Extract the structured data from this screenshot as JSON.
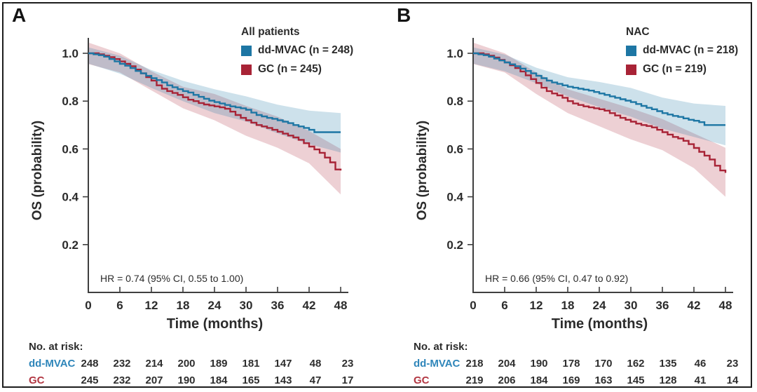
{
  "figure": {
    "background": "#ffffff",
    "border_color": "#1d1d1d",
    "axis_color": "#3f3f3f",
    "text_color": "#2b2b2b"
  },
  "axes": {
    "x_label": "Time (months)",
    "y_label": "OS (probability)",
    "x_ticks": [
      0,
      6,
      12,
      18,
      24,
      30,
      36,
      42,
      48
    ],
    "y_tick_labels": [
      "1.0",
      "0.8",
      "0.6",
      "0.4",
      "0.2"
    ],
    "xlim": [
      0,
      48
    ],
    "ylim": [
      0,
      1.05
    ]
  },
  "chart_data": [
    {
      "type": "line",
      "panel": "A",
      "title": "All patients",
      "xlabel": "Time (months)",
      "ylabel": "OS (probability)",
      "legend_position": "top-right",
      "hr_annotation": "HR = 0.74 (95% CI, 0.55 to 1.00)",
      "series": [
        {
          "name": "dd-MVAC",
          "label": "dd-MVAC (n = 248)",
          "n": 248,
          "color": "#1d76a4",
          "band_color": "rgba(29,118,164,0.22)",
          "steps": [
            [
              0,
              1
            ],
            [
              1,
              0.996
            ],
            [
              2,
              0.992
            ],
            [
              3,
              0.986
            ],
            [
              4,
              0.976
            ],
            [
              5,
              0.966
            ],
            [
              6,
              0.956
            ],
            [
              7,
              0.948
            ],
            [
              8,
              0.938
            ],
            [
              9,
              0.926
            ],
            [
              10,
              0.916
            ],
            [
              11,
              0.906
            ],
            [
              12,
              0.896
            ],
            [
              13,
              0.888
            ],
            [
              14,
              0.878
            ],
            [
              15,
              0.866
            ],
            [
              16,
              0.858
            ],
            [
              17,
              0.85
            ],
            [
              18,
              0.842
            ],
            [
              19,
              0.836
            ],
            [
              20,
              0.826
            ],
            [
              21,
              0.818
            ],
            [
              22,
              0.81
            ],
            [
              23,
              0.802
            ],
            [
              24,
              0.796
            ],
            [
              25,
              0.79
            ],
            [
              26,
              0.784
            ],
            [
              27,
              0.778
            ],
            [
              28,
              0.774
            ],
            [
              29,
              0.77
            ],
            [
              30,
              0.764
            ],
            [
              31,
              0.752
            ],
            [
              32,
              0.742
            ],
            [
              33,
              0.736
            ],
            [
              34,
              0.73
            ],
            [
              35,
              0.726
            ],
            [
              36,
              0.72
            ],
            [
              37,
              0.714
            ],
            [
              38,
              0.708
            ],
            [
              39,
              0.7
            ],
            [
              40,
              0.694
            ],
            [
              41,
              0.688
            ],
            [
              42,
              0.68
            ],
            [
              43,
              0.67
            ],
            [
              48,
              0.67
            ]
          ],
          "ci": [
            [
              0,
              0.957,
              1.025
            ],
            [
              6,
              0.915,
              0.99
            ],
            [
              12,
              0.855,
              0.93
            ],
            [
              18,
              0.8,
              0.885
            ],
            [
              24,
              0.75,
              0.85
            ],
            [
              30,
              0.715,
              0.82
            ],
            [
              36,
              0.665,
              0.785
            ],
            [
              42,
              0.62,
              0.76
            ],
            [
              48,
              0.585,
              0.75
            ]
          ]
        },
        {
          "name": "GC",
          "label": "GC (n = 245)",
          "n": 245,
          "color": "#a82336",
          "band_color": "rgba(168,35,54,0.21)",
          "steps": [
            [
              0,
              1
            ],
            [
              2,
              0.996
            ],
            [
              3,
              0.99
            ],
            [
              4,
              0.984
            ],
            [
              5,
              0.976
            ],
            [
              6,
              0.966
            ],
            [
              7,
              0.956
            ],
            [
              8,
              0.946
            ],
            [
              9,
              0.932
            ],
            [
              10,
              0.916
            ],
            [
              11,
              0.9
            ],
            [
              12,
              0.886
            ],
            [
              13,
              0.866
            ],
            [
              14,
              0.852
            ],
            [
              15,
              0.842
            ],
            [
              16,
              0.834
            ],
            [
              17,
              0.826
            ],
            [
              18,
              0.816
            ],
            [
              19,
              0.806
            ],
            [
              20,
              0.8
            ],
            [
              21,
              0.792
            ],
            [
              22,
              0.786
            ],
            [
              23,
              0.782
            ],
            [
              24,
              0.778
            ],
            [
              25,
              0.774
            ],
            [
              26,
              0.768
            ],
            [
              27,
              0.756
            ],
            [
              28,
              0.742
            ],
            [
              29,
              0.73
            ],
            [
              30,
              0.72
            ],
            [
              31,
              0.71
            ],
            [
              32,
              0.7
            ],
            [
              33,
              0.694
            ],
            [
              34,
              0.688
            ],
            [
              35,
              0.68
            ],
            [
              36,
              0.672
            ],
            [
              37,
              0.664
            ],
            [
              38,
              0.656
            ],
            [
              39,
              0.648
            ],
            [
              40,
              0.638
            ],
            [
              41,
              0.624
            ],
            [
              42,
              0.61
            ],
            [
              43,
              0.598
            ],
            [
              44,
              0.584
            ],
            [
              45,
              0.564
            ],
            [
              46,
              0.544
            ],
            [
              47,
              0.514
            ],
            [
              48,
              0.51
            ]
          ],
          "ci": [
            [
              0,
              0.955,
              1.045
            ],
            [
              6,
              0.92,
              1.0
            ],
            [
              12,
              0.845,
              0.925
            ],
            [
              18,
              0.77,
              0.86
            ],
            [
              24,
              0.72,
              0.83
            ],
            [
              30,
              0.655,
              0.78
            ],
            [
              36,
              0.605,
              0.735
            ],
            [
              42,
              0.54,
              0.675
            ],
            [
              48,
              0.41,
              0.6
            ]
          ]
        }
      ],
      "risk_table": {
        "header": "No. at risk:",
        "time_points": [
          0,
          6,
          12,
          18,
          24,
          30,
          36,
          42,
          48
        ],
        "rows": [
          {
            "label": "dd-MVAC",
            "color": "#2f86ba",
            "values": [
              248,
              232,
              214,
              200,
              189,
              181,
              147,
              48,
              23
            ]
          },
          {
            "label": "GC",
            "color": "#b23642",
            "values": [
              245,
              232,
              207,
              190,
              184,
              165,
              143,
              47,
              17
            ]
          }
        ]
      }
    },
    {
      "type": "line",
      "panel": "B",
      "title": "NAC",
      "xlabel": "Time (months)",
      "ylabel": "OS (probability)",
      "legend_position": "top-right",
      "hr_annotation": "HR = 0.66 (95% CI, 0.47 to 0.92)",
      "series": [
        {
          "name": "dd-MVAC",
          "label": "dd-MVAC (n = 218)",
          "n": 218,
          "color": "#1d76a4",
          "band_color": "rgba(29,118,164,0.22)",
          "steps": [
            [
              0,
              1
            ],
            [
              1,
              0.996
            ],
            [
              2,
              0.992
            ],
            [
              3,
              0.986
            ],
            [
              4,
              0.978
            ],
            [
              5,
              0.97
            ],
            [
              6,
              0.962
            ],
            [
              7,
              0.954
            ],
            [
              8,
              0.946
            ],
            [
              9,
              0.936
            ],
            [
              10,
              0.926
            ],
            [
              11,
              0.916
            ],
            [
              12,
              0.906
            ],
            [
              13,
              0.896
            ],
            [
              14,
              0.886
            ],
            [
              15,
              0.878
            ],
            [
              16,
              0.872
            ],
            [
              17,
              0.866
            ],
            [
              18,
              0.86
            ],
            [
              19,
              0.856
            ],
            [
              20,
              0.852
            ],
            [
              21,
              0.848
            ],
            [
              22,
              0.844
            ],
            [
              23,
              0.838
            ],
            [
              24,
              0.832
            ],
            [
              25,
              0.826
            ],
            [
              26,
              0.82
            ],
            [
              27,
              0.814
            ],
            [
              28,
              0.808
            ],
            [
              29,
              0.802
            ],
            [
              30,
              0.796
            ],
            [
              31,
              0.788
            ],
            [
              32,
              0.78
            ],
            [
              33,
              0.772
            ],
            [
              34,
              0.766
            ],
            [
              35,
              0.758
            ],
            [
              36,
              0.75
            ],
            [
              37,
              0.744
            ],
            [
              38,
              0.738
            ],
            [
              39,
              0.734
            ],
            [
              40,
              0.728
            ],
            [
              41,
              0.722
            ],
            [
              42,
              0.718
            ],
            [
              43,
              0.712
            ],
            [
              44,
              0.7
            ],
            [
              48,
              0.7
            ]
          ],
          "ci": [
            [
              0,
              0.957,
              1.025
            ],
            [
              6,
              0.925,
              0.995
            ],
            [
              12,
              0.875,
              0.94
            ],
            [
              18,
              0.82,
              0.9
            ],
            [
              24,
              0.775,
              0.88
            ],
            [
              30,
              0.735,
              0.855
            ],
            [
              36,
              0.685,
              0.815
            ],
            [
              42,
              0.65,
              0.79
            ],
            [
              48,
              0.615,
              0.78
            ]
          ]
        },
        {
          "name": "GC",
          "label": "GC (n = 219)",
          "n": 219,
          "color": "#a82336",
          "band_color": "rgba(168,35,54,0.21)",
          "steps": [
            [
              0,
              1
            ],
            [
              2,
              0.996
            ],
            [
              3,
              0.99
            ],
            [
              4,
              0.982
            ],
            [
              5,
              0.972
            ],
            [
              6,
              0.962
            ],
            [
              7,
              0.95
            ],
            [
              8,
              0.938
            ],
            [
              9,
              0.924
            ],
            [
              10,
              0.908
            ],
            [
              11,
              0.892
            ],
            [
              12,
              0.876
            ],
            [
              13,
              0.856
            ],
            [
              14,
              0.842
            ],
            [
              15,
              0.832
            ],
            [
              16,
              0.824
            ],
            [
              17,
              0.814
            ],
            [
              18,
              0.8
            ],
            [
              19,
              0.79
            ],
            [
              20,
              0.784
            ],
            [
              21,
              0.778
            ],
            [
              22,
              0.774
            ],
            [
              23,
              0.77
            ],
            [
              24,
              0.766
            ],
            [
              25,
              0.76
            ],
            [
              26,
              0.75
            ],
            [
              27,
              0.74
            ],
            [
              28,
              0.73
            ],
            [
              29,
              0.722
            ],
            [
              30,
              0.714
            ],
            [
              31,
              0.706
            ],
            [
              32,
              0.7
            ],
            [
              33,
              0.696
            ],
            [
              34,
              0.69
            ],
            [
              35,
              0.68
            ],
            [
              36,
              0.67
            ],
            [
              37,
              0.66
            ],
            [
              38,
              0.65
            ],
            [
              39,
              0.644
            ],
            [
              40,
              0.634
            ],
            [
              41,
              0.62
            ],
            [
              42,
              0.604
            ],
            [
              43,
              0.588
            ],
            [
              44,
              0.572
            ],
            [
              45,
              0.556
            ],
            [
              46,
              0.53
            ],
            [
              47,
              0.51
            ],
            [
              48,
              0.5
            ]
          ],
          "ci": [
            [
              0,
              0.955,
              1.045
            ],
            [
              6,
              0.92,
              1.0
            ],
            [
              12,
              0.83,
              0.92
            ],
            [
              18,
              0.75,
              0.85
            ],
            [
              24,
              0.695,
              0.81
            ],
            [
              30,
              0.64,
              0.77
            ],
            [
              36,
              0.595,
              0.725
            ],
            [
              42,
              0.52,
              0.665
            ],
            [
              48,
              0.4,
              0.605
            ]
          ]
        }
      ],
      "risk_table": {
        "header": "No. at risk:",
        "time_points": [
          0,
          6,
          12,
          18,
          24,
          30,
          36,
          42,
          48
        ],
        "rows": [
          {
            "label": "dd-MVAC",
            "color": "#2f86ba",
            "values": [
              218,
              204,
              190,
              178,
              170,
              162,
              135,
              46,
              23
            ]
          },
          {
            "label": "GC",
            "color": "#b23642",
            "values": [
              219,
              206,
              184,
              169,
              163,
              145,
              128,
              41,
              14
            ]
          }
        ]
      }
    }
  ]
}
